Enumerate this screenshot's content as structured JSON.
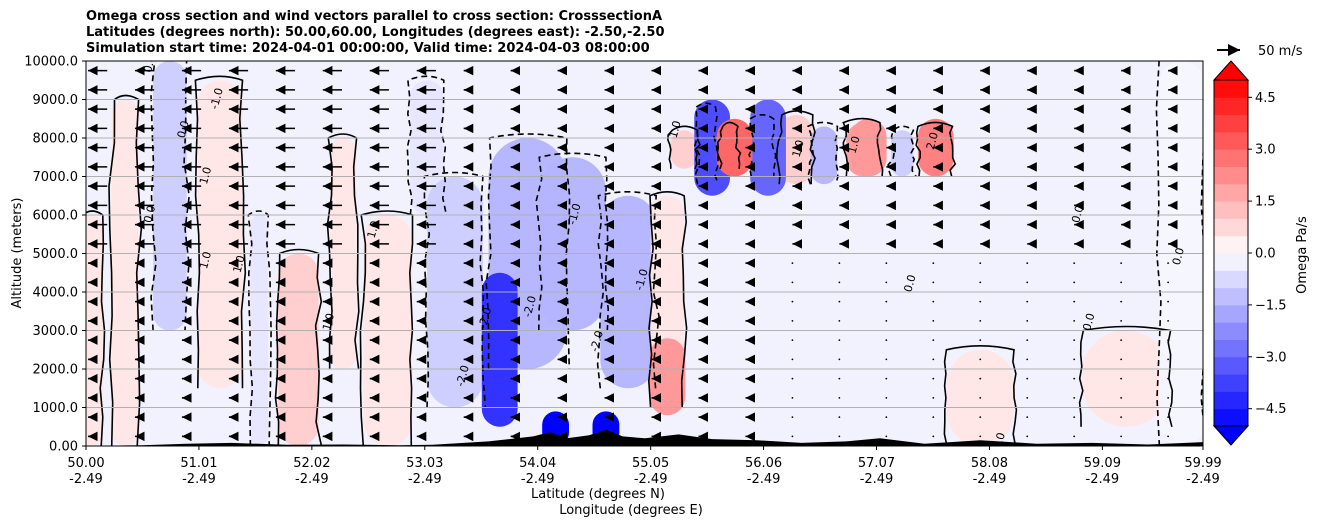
{
  "chart_data": {
    "type": "contour_cross_section",
    "title_lines": [
      "Omega cross section and wind vectors parallel to cross section: CrosssectionA",
      "Latitudes (degrees north): 50.00,60.00, Longitudes (degrees east): -2.50,-2.50",
      "Simulation start time: 2024-04-01 00:00:00, Valid time: 2024-04-03 08:00:00"
    ],
    "ylabel": "Altitude (meters)",
    "xlabel_line1": "Latitude (degrees N)",
    "xlabel_line2": "Longitude (degrees E)",
    "ylim": [
      0,
      10000
    ],
    "y_ticks": [
      {
        "v": 0,
        "label": "0.00"
      },
      {
        "v": 1000,
        "label": "1000.0"
      },
      {
        "v": 2000,
        "label": "2000.0"
      },
      {
        "v": 3000,
        "label": "3000.0"
      },
      {
        "v": 4000,
        "label": "4000.0"
      },
      {
        "v": 5000,
        "label": "5000.0"
      },
      {
        "v": 6000,
        "label": "6000.0"
      },
      {
        "v": 7000,
        "label": "7000.0"
      },
      {
        "v": 8000,
        "label": "8000.0"
      },
      {
        "v": 9000,
        "label": "9000.0"
      },
      {
        "v": 10000,
        "label": "10000.0"
      }
    ],
    "xlim": [
      50.0,
      59.99
    ],
    "x_ticks": [
      {
        "lat": 50.0,
        "label": "50.00",
        "lon": "-2.49"
      },
      {
        "lat": 51.01,
        "label": "51.01",
        "lon": "-2.49"
      },
      {
        "lat": 52.02,
        "label": "52.02",
        "lon": "-2.49"
      },
      {
        "lat": 53.03,
        "label": "53.03",
        "lon": "-2.49"
      },
      {
        "lat": 54.04,
        "label": "54.04",
        "lon": "-2.49"
      },
      {
        "lat": 55.05,
        "label": "55.05",
        "lon": "-2.49"
      },
      {
        "lat": 56.06,
        "label": "56.06",
        "lon": "-2.49"
      },
      {
        "lat": 57.07,
        "label": "57.07",
        "lon": "-2.49"
      },
      {
        "lat": 58.08,
        "label": "58.08",
        "lon": "-2.49"
      },
      {
        "lat": 59.09,
        "label": "59.09",
        "lon": "-2.49"
      },
      {
        "lat": 59.99,
        "label": "59.99",
        "lon": "-2.49"
      }
    ],
    "grid": "horizontal",
    "colorbar": {
      "label": "Omega Pa/s",
      "range": [
        -5.0,
        5.0
      ],
      "extend": "both",
      "ticks": [
        {
          "v": 4.5,
          "label": "4.5"
        },
        {
          "v": 3.0,
          "label": "3.0"
        },
        {
          "v": 1.5,
          "label": "1.5"
        },
        {
          "v": 0.0,
          "label": "0.0"
        },
        {
          "v": -1.5,
          "label": "−1.5"
        },
        {
          "v": -3.0,
          "label": "−3.0"
        },
        {
          "v": -4.5,
          "label": "−4.5"
        }
      ],
      "colormap": "bwr"
    },
    "wind_key": {
      "label": "50 m/s",
      "speed": 50
    },
    "features": [
      {
        "kind": "updraft",
        "lat": 54.2,
        "z": [
          0,
          900
        ],
        "omega": -5.0
      },
      {
        "kind": "updraft",
        "lat": 54.65,
        "z": [
          0,
          900
        ],
        "omega": -5.0
      },
      {
        "kind": "descent",
        "lat": 53.7,
        "z": [
          500,
          4500
        ],
        "omega": -4.0
      },
      {
        "kind": "descent",
        "lat": 55.6,
        "z": [
          6500,
          9000
        ],
        "omega": -3.5
      },
      {
        "kind": "descent",
        "lat": 56.1,
        "z": [
          6500,
          9000
        ],
        "omega": -3.0
      },
      {
        "kind": "subsidence",
        "lat": 55.8,
        "z": [
          7000,
          8500
        ],
        "omega": 3.0
      },
      {
        "kind": "subsidence",
        "lat": 57.0,
        "z": [
          7000,
          8500
        ],
        "omega": 2.0
      },
      {
        "kind": "subsidence",
        "lat": 57.6,
        "z": [
          7000,
          8500
        ],
        "omega": 2.5
      },
      {
        "kind": "subsidence",
        "lat": 55.2,
        "z": [
          800,
          2800
        ],
        "omega": 2.0
      }
    ],
    "contour_labels": [
      {
        "lat": 50.6,
        "z": 9900,
        "text": "0.0"
      },
      {
        "lat": 51.2,
        "z": 9000,
        "text": "-1.0"
      },
      {
        "lat": 50.9,
        "z": 8200,
        "text": "0.0"
      },
      {
        "lat": 51.1,
        "z": 7000,
        "text": "1.0"
      },
      {
        "lat": 50.6,
        "z": 6000,
        "text": "0.0"
      },
      {
        "lat": 51.1,
        "z": 4800,
        "text": "1.0"
      },
      {
        "lat": 51.4,
        "z": 4700,
        "text": "1.0"
      },
      {
        "lat": 52.2,
        "z": 3200,
        "text": "1.0"
      },
      {
        "lat": 52.6,
        "z": 5600,
        "text": "1.0"
      },
      {
        "lat": 53.6,
        "z": 3300,
        "text": "-2.0"
      },
      {
        "lat": 54.4,
        "z": 6000,
        "text": "-1.0"
      },
      {
        "lat": 54.0,
        "z": 3600,
        "text": "-2.0"
      },
      {
        "lat": 55.0,
        "z": 4300,
        "text": "-1.0"
      },
      {
        "lat": 54.6,
        "z": 2700,
        "text": "-2.0"
      },
      {
        "lat": 53.4,
        "z": 1800,
        "text": "-2.0"
      },
      {
        "lat": 55.3,
        "z": 8200,
        "text": "1.0"
      },
      {
        "lat": 56.4,
        "z": 7700,
        "text": "1.0"
      },
      {
        "lat": 56.9,
        "z": 7800,
        "text": "1.0"
      },
      {
        "lat": 57.6,
        "z": 7900,
        "text": "2.0"
      },
      {
        "lat": 57.4,
        "z": 4200,
        "text": "0.0"
      },
      {
        "lat": 58.9,
        "z": 6000,
        "text": "0.0"
      },
      {
        "lat": 59.8,
        "z": 4900,
        "text": "0.0"
      },
      {
        "lat": 59.0,
        "z": 3200,
        "text": "0.0"
      },
      {
        "lat": 58.2,
        "z": 100,
        "text": "0.0"
      }
    ]
  }
}
